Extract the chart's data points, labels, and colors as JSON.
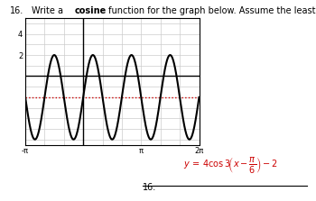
{
  "question_number": "16.",
  "background_color": "#ffffff",
  "graph_bg": "#ffffff",
  "grid_color": "#cccccc",
  "curve_color": "#000000",
  "dotted_line_color": "#cc0000",
  "dotted_line_y": -2,
  "x_min": -3.14159265,
  "x_max": 6.2831853,
  "y_min": -6.5,
  "y_max": 5.5,
  "x_ticks_labels": [
    "-π",
    "",
    "π",
    "2π"
  ],
  "x_ticks_values": [
    -3.14159265,
    0,
    3.14159265,
    6.2831853
  ],
  "y_ticks": [
    2,
    4
  ],
  "amplitude": 4,
  "b_coeff": 3,
  "phase_shift_num": 1,
  "phase_shift_den": 6,
  "vertical_shift": -2,
  "answer_color": "#cc0000",
  "label_16": "16."
}
